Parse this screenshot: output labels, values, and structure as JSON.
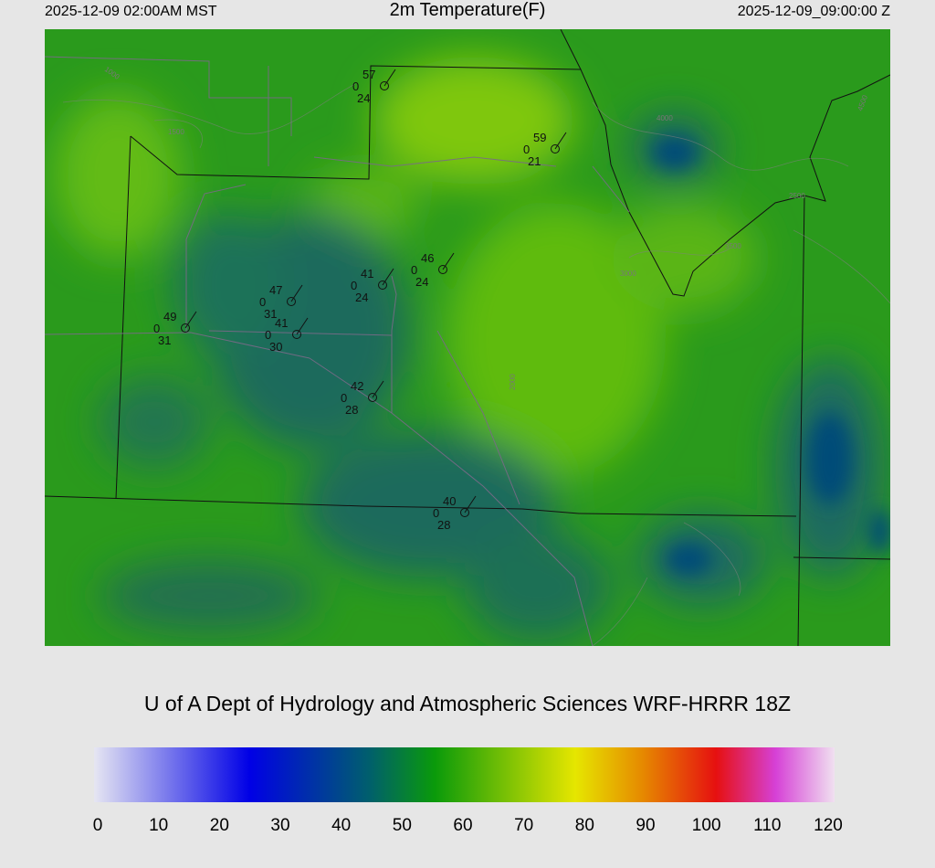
{
  "header": {
    "valid_local": "2025-12-09 02:00AM MST",
    "title": "2m Temperature(F)",
    "valid_utc": "2025-12-09_09:00:00 Z"
  },
  "credit": "U of A Dept of Hydrology and Atmospheric Sciences WRF-HRRR 18Z",
  "colorbar": {
    "ticks": [
      "0",
      "10",
      "20",
      "30",
      "40",
      "50",
      "60",
      "70",
      "80",
      "90",
      "100",
      "110",
      "120"
    ],
    "colors": {
      "min": "#e6e6f2",
      "cold_blue": "#0000e6",
      "teal": "#005e6e",
      "green": "#0a9a0a",
      "yellow": "#e6e600",
      "orange": "#e68a00",
      "red": "#e61010",
      "magenta": "#d640d6",
      "max": "#f0e0f0"
    }
  },
  "stations": [
    {
      "temp": "57",
      "wind": "0",
      "dew": "24"
    },
    {
      "temp": "59",
      "wind": "0",
      "dew": "21"
    },
    {
      "temp": "46",
      "wind": "0",
      "dew": "24"
    },
    {
      "temp": "41",
      "wind": "0",
      "dew": "24"
    },
    {
      "temp": "47",
      "wind": "0",
      "dew": "31"
    },
    {
      "temp": "41",
      "wind": "0",
      "dew": "30"
    },
    {
      "temp": "49",
      "wind": "0",
      "dew": "31"
    },
    {
      "temp": "42",
      "wind": "0",
      "dew": "28"
    },
    {
      "temp": "40",
      "wind": "0",
      "dew": "28"
    }
  ],
  "contour_labels": [
    "1000",
    "1500",
    "2000",
    "2500",
    "3000",
    "3500",
    "4000",
    "4500"
  ]
}
